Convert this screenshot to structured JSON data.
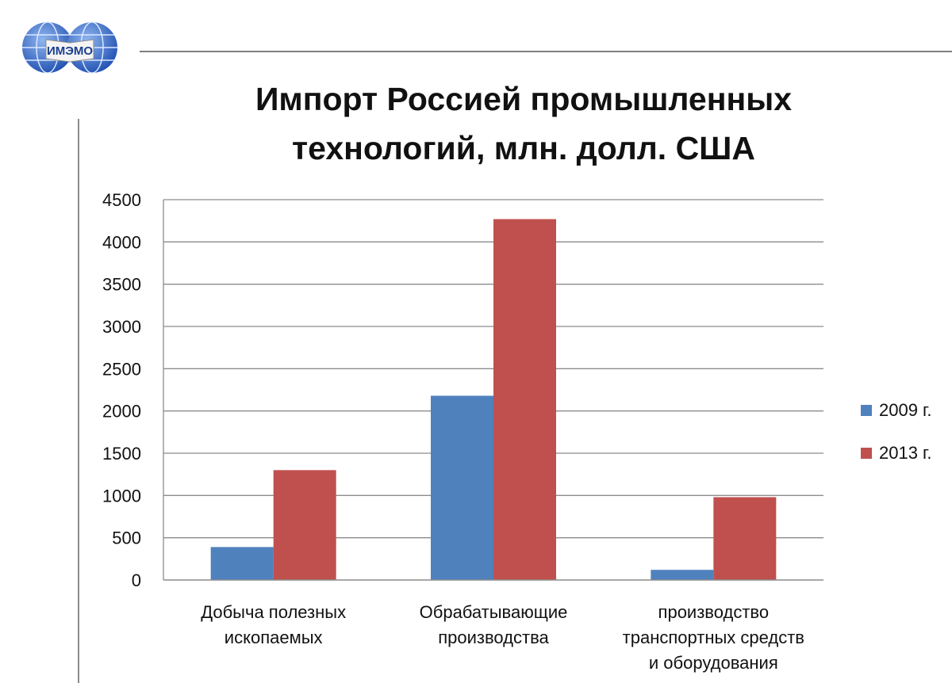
{
  "logo": {
    "text": "ИМЭМО"
  },
  "chart_data": {
    "type": "bar",
    "title_lines": [
      "Импорт Россией промышленных",
      "технологий, млн. долл. США"
    ],
    "categories": [
      [
        "Добыча полезных",
        "ископаемых"
      ],
      [
        "Обрабатывающие",
        "производства"
      ],
      [
        "производство",
        "транспортных средств",
        "и оборудования"
      ]
    ],
    "series": [
      {
        "name": "2009 г.",
        "values": [
          390,
          2180,
          120
        ],
        "color": "#4f81bd"
      },
      {
        "name": "2013 г.",
        "values": [
          1300,
          4270,
          980
        ],
        "color": "#c0504d"
      }
    ],
    "ylim": [
      0,
      4500
    ],
    "yticks": [
      0,
      500,
      1000,
      1500,
      2000,
      2500,
      3000,
      3500,
      4000,
      4500
    ],
    "grid": true,
    "legend": "right"
  }
}
